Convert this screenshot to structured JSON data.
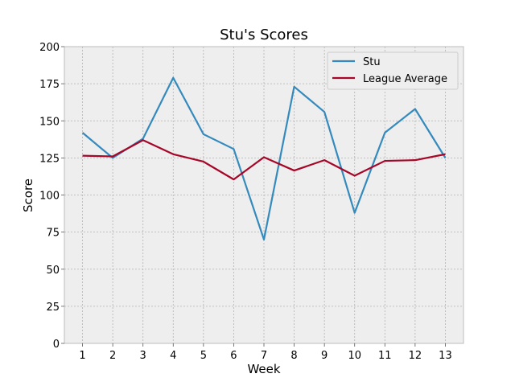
{
  "chart_data": {
    "type": "line",
    "title": "Stu's Scores",
    "xlabel": "Week",
    "ylabel": "Score",
    "x": [
      1,
      2,
      3,
      4,
      5,
      6,
      7,
      8,
      9,
      10,
      11,
      12,
      13
    ],
    "xlim": [
      0.4,
      13.6
    ],
    "ylim": [
      0,
      200
    ],
    "yticks": [
      0,
      25,
      50,
      75,
      100,
      125,
      150,
      175,
      200
    ],
    "grid": true,
    "legend": "top-right",
    "series": [
      {
        "name": "Stu",
        "color": "#348ABD",
        "values": [
          142,
          125,
          138,
          179,
          141,
          131,
          70,
          173,
          156,
          88,
          142,
          158,
          125
        ]
      },
      {
        "name": "League Average",
        "color": "#A60628",
        "values": [
          126.5,
          126,
          137,
          127.5,
          122.5,
          110.5,
          125.5,
          116.5,
          123.5,
          113,
          123,
          123.5,
          127.5
        ]
      }
    ]
  },
  "colors": {
    "plot_background": "#EEEEEE",
    "grid": "#B2B2B2",
    "axes_edge": "#BCBCBC"
  }
}
